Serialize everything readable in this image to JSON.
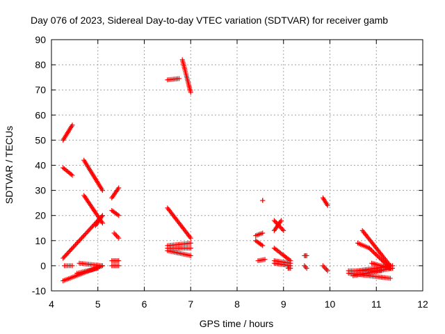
{
  "chart_data": {
    "type": "scatter",
    "title": "Day 076 of 2023, Sidereal Day-to-day VTEC variation (SDTVAR) for receiver gamb",
    "xlabel": "GPS time / hours",
    "ylabel": "SDTVAR / TECUs",
    "xlim": [
      4,
      12
    ],
    "ylim": [
      -10,
      90
    ],
    "xticks": [
      "4",
      "5",
      "6",
      "7",
      "8",
      "9",
      "10",
      "11",
      "12"
    ],
    "yticks": [
      "-10",
      "0",
      "10",
      "20",
      "30",
      "40",
      "50",
      "60",
      "70",
      "80",
      "90"
    ],
    "grid": true,
    "marker": "plus",
    "color": "#ff0000",
    "segments": [
      {
        "x": [
          4.25,
          4.45
        ],
        "y": [
          50,
          56
        ]
      },
      {
        "x": [
          4.25,
          4.45
        ],
        "y": [
          39,
          36
        ]
      },
      {
        "x": [
          4.25,
          5.1
        ],
        "y": [
          3,
          20
        ]
      },
      {
        "x": [
          4.28,
          4.45
        ],
        "y": [
          0,
          0
        ]
      },
      {
        "x": [
          4.25,
          5.1
        ],
        "y": [
          -6,
          0
        ]
      },
      {
        "x": [
          4.55,
          5.0
        ],
        "y": [
          -3,
          -1
        ]
      },
      {
        "x": [
          4.6,
          5.1
        ],
        "y": [
          1,
          0
        ]
      },
      {
        "x": [
          4.7,
          5.1
        ],
        "y": [
          42,
          30
        ]
      },
      {
        "x": [
          4.7,
          5.1
        ],
        "y": [
          28,
          17
        ]
      },
      {
        "x": [
          4.95,
          5.1
        ],
        "y": [
          16,
          20
        ]
      },
      {
        "x": [
          5.3,
          5.45
        ],
        "y": [
          27,
          31
        ]
      },
      {
        "x": [
          5.3,
          5.45
        ],
        "y": [
          22,
          20
        ]
      },
      {
        "x": [
          5.35,
          5.45
        ],
        "y": [
          13,
          11
        ]
      },
      {
        "x": [
          5.3,
          5.45
        ],
        "y": [
          2,
          2
        ]
      },
      {
        "x": [
          5.3,
          5.45
        ],
        "y": [
          0,
          0
        ]
      },
      {
        "x": [
          6.5,
          6.75
        ],
        "y": [
          74,
          74.5
        ]
      },
      {
        "x": [
          6.82,
          7.0
        ],
        "y": [
          82,
          69
        ]
      },
      {
        "x": [
          6.5,
          7.0
        ],
        "y": [
          23,
          11
        ]
      },
      {
        "x": [
          6.5,
          7.0
        ],
        "y": [
          8,
          9
        ]
      },
      {
        "x": [
          6.5,
          7.0
        ],
        "y": [
          7,
          7
        ]
      },
      {
        "x": [
          6.5,
          7.0
        ],
        "y": [
          6,
          4
        ]
      },
      {
        "x": [
          8.4,
          8.55
        ],
        "y": [
          12,
          13
        ]
      },
      {
        "x": [
          8.4,
          8.55
        ],
        "y": [
          10,
          8
        ]
      },
      {
        "x": [
          8.45,
          8.6
        ],
        "y": [
          2,
          2.5
        ]
      },
      {
        "x": [
          8.55,
          8.55
        ],
        "y": [
          26,
          26
        ]
      },
      {
        "x": [
          8.8,
          9.0
        ],
        "y": [
          18,
          14
        ]
      },
      {
        "x": [
          8.8,
          8.95
        ],
        "y": [
          14,
          18
        ]
      },
      {
        "x": [
          8.8,
          9.15
        ],
        "y": [
          7,
          2
        ]
      },
      {
        "x": [
          8.8,
          9.15
        ],
        "y": [
          2,
          1
        ]
      },
      {
        "x": [
          8.8,
          9.15
        ],
        "y": [
          1,
          0
        ]
      },
      {
        "x": [
          9.1,
          9.15
        ],
        "y": [
          -1,
          -1
        ]
      },
      {
        "x": [
          9.45,
          9.5
        ],
        "y": [
          4,
          4
        ]
      },
      {
        "x": [
          9.45,
          9.5
        ],
        "y": [
          0,
          -1
        ]
      },
      {
        "x": [
          9.85,
          9.95
        ],
        "y": [
          27,
          24
        ]
      },
      {
        "x": [
          9.85,
          9.95
        ],
        "y": [
          0,
          -2
        ]
      },
      {
        "x": [
          10.4,
          11.1
        ],
        "y": [
          -2,
          -2
        ]
      },
      {
        "x": [
          10.4,
          11.3
        ],
        "y": [
          -3,
          -5
        ]
      },
      {
        "x": [
          10.5,
          11.35
        ],
        "y": [
          -4,
          -1
        ]
      },
      {
        "x": [
          10.6,
          11.35
        ],
        "y": [
          -2,
          0
        ]
      },
      {
        "x": [
          10.7,
          11.3
        ],
        "y": [
          14,
          0
        ]
      },
      {
        "x": [
          10.6,
          10.85
        ],
        "y": [
          9,
          7
        ]
      },
      {
        "x": [
          10.85,
          11.3
        ],
        "y": [
          7,
          -1
        ]
      },
      {
        "x": [
          10.9,
          11.3
        ],
        "y": [
          1,
          -1
        ]
      }
    ]
  }
}
